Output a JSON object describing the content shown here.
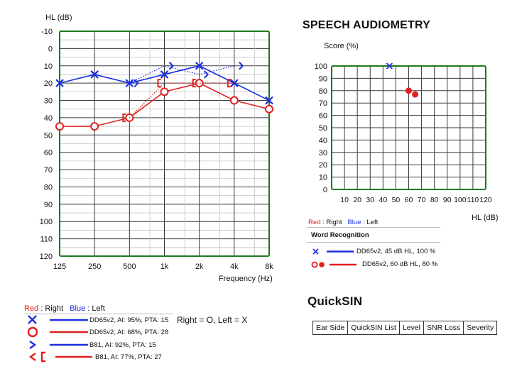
{
  "colors": {
    "right": "#e02020",
    "left": "#1a2ee0",
    "grid_border": "#1e7a1e"
  },
  "audiogram": {
    "ylabel": "HL (dB)",
    "xlabel": "Frequency (Hz)",
    "y_ticks": [
      "-10",
      "0",
      "10",
      "20",
      "30",
      "40",
      "50",
      "60",
      "70",
      "80",
      "90",
      "100",
      "110",
      "120"
    ],
    "x_ticks": [
      "125",
      "250",
      "500",
      "1k",
      "2k",
      "4k",
      "8k"
    ]
  },
  "chart_data": [
    {
      "type": "line",
      "title": "",
      "xlabel": "Frequency (Hz)",
      "ylabel": "HL (dB)",
      "x_scale": "log",
      "y_inverted": true,
      "ylim": [
        -10,
        120
      ],
      "x_ticks": [
        "125",
        "250",
        "500",
        "1k",
        "2k",
        "4k",
        "8k"
      ],
      "series": [
        {
          "name": "DD65v2, AI: 95%, PTA: 15",
          "ear": "left",
          "symbol": "X",
          "line": "solid",
          "x": [
            125,
            250,
            500,
            1000,
            2000,
            4000,
            8000
          ],
          "y": [
            20,
            15,
            20,
            15,
            10,
            20,
            30
          ]
        },
        {
          "name": "DD65v2, AI: 68%, PTA: 28",
          "ear": "right",
          "symbol": "O",
          "line": "solid",
          "x": [
            125,
            250,
            500,
            1000,
            2000,
            4000,
            8000
          ],
          "y": [
            45,
            45,
            40,
            25,
            20,
            30,
            35
          ]
        },
        {
          "name": "B81, AI: 92%, PTA: 15",
          "ear": "left",
          "symbol": ">",
          "line": "dotted",
          "x": [
            500,
            1000,
            2000,
            4000
          ],
          "y": [
            20,
            10,
            15,
            10
          ]
        },
        {
          "name": "B81, AI: 77%, PTA: 27",
          "ear": "right",
          "symbol": "[",
          "line": "dotted",
          "x": [
            500,
            1000,
            2000,
            4000
          ],
          "y": [
            40,
            20,
            20,
            20
          ]
        }
      ]
    },
    {
      "type": "scatter",
      "title": "SPEECH AUDIOMETRY",
      "xlabel": "HL (dB)",
      "ylabel": "Score (%)",
      "xlim": [
        0,
        120
      ],
      "ylim": [
        0,
        100
      ],
      "x_ticks": [
        "10",
        "20",
        "30",
        "40",
        "50",
        "60",
        "70",
        "80",
        "90",
        "100",
        "110",
        "120"
      ],
      "y_ticks": [
        "0",
        "10",
        "20",
        "30",
        "40",
        "50",
        "60",
        "70",
        "80",
        "90",
        "100"
      ],
      "series": [
        {
          "name": "DD65v2, 45 dB HL, 100 %",
          "ear": "left",
          "symbol": "X",
          "points": [
            [
              45,
              100
            ]
          ]
        },
        {
          "name": "DD65v2, 60 dB HL, 80 %",
          "ear": "right",
          "symbol": "dot",
          "points": [
            [
              60,
              80
            ],
            [
              65,
              77
            ]
          ]
        }
      ]
    }
  ],
  "legend": {
    "red_label": "Red",
    "right_label": " :  Right",
    "blue_label": "Blue",
    "left_label": " :  Left",
    "items": [
      "DD65v2, AI: 95%, PTA: 15",
      "DD65v2, AI: 68%, PTA: 28",
      "B81, AI: 92%, PTA: 15",
      "B81, AI: 77%, PTA: 27"
    ]
  },
  "ear_note": "Right = O, Left = X",
  "speech": {
    "title": "SPEECH AUDIOMETRY",
    "ylabel": "Score (%)",
    "xlabel": "HL (dB)",
    "legend_red": "Red",
    "legend_right": " :  Right",
    "legend_blue": "Blue",
    "legend_left": " :  Left",
    "word_recognition": "Word Recognition",
    "items": [
      "DD65v2, 45 dB HL, 100 %",
      "DD65v2, 60 dB HL, 80 %"
    ]
  },
  "quicksin": {
    "title": "QuickSIN",
    "columns": [
      "Ear Side",
      "QuickSIN List",
      "Level",
      "SNR Loss",
      "Severity"
    ]
  }
}
